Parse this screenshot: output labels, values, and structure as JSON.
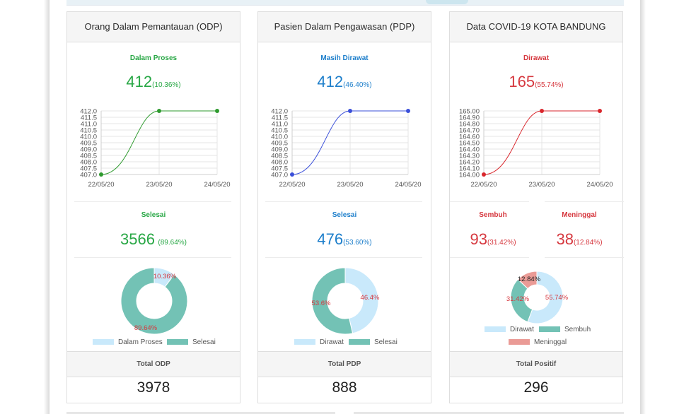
{
  "colors": {
    "green": "#28a745",
    "blue": "#1e7fcb",
    "red": "#d6383f",
    "donut_light": "#c9e9fb",
    "donut_teal": "#73c2b5",
    "donut_pink": "#ea9b96"
  },
  "cards": [
    {
      "title": "Orang Dalam Pemantauan (ODP)",
      "stat1": {
        "label": "Dalam Proses",
        "value": "412",
        "pct": "(10.36%)"
      },
      "stat2": {
        "label": "Selesai",
        "value": "3566",
        "pct": "(89.64%)"
      },
      "legend": [
        "Dalam Proses",
        "Selesai"
      ],
      "total_label": "Total ODP",
      "total_value": "3978"
    },
    {
      "title": "Pasien Dalam Pengawasan (PDP)",
      "stat1": {
        "label": "Masih Dirawat",
        "value": "412",
        "pct": "(46.40%)"
      },
      "stat2": {
        "label": "Selesai",
        "value": "476",
        "pct": "(53.60%)"
      },
      "legend": [
        "Dirawat",
        "Selesai"
      ],
      "total_label": "Total PDP",
      "total_value": "888"
    },
    {
      "title": "Data COVID-19 KOTA BANDUNG",
      "stat1": {
        "label": "Dirawat",
        "value": "165",
        "pct": "(55.74%)"
      },
      "stat2": {
        "label": "Sembuh",
        "value": "93",
        "pct": "(31.42%)"
      },
      "stat3": {
        "label": "Meninggal",
        "value": "38",
        "pct": "(12.84%)"
      },
      "legend": [
        "Dirawat",
        "Sembuh",
        "Meninggal"
      ],
      "total_label": "Total Positif",
      "total_value": "296"
    }
  ],
  "chart_data": [
    {
      "type": "line",
      "x": [
        "22/05/20",
        "23/05/20",
        "24/05/20"
      ],
      "values": [
        407,
        412,
        412
      ],
      "ylim": [
        407,
        412
      ],
      "yticks": [
        "412.0",
        "411.5",
        "411.0",
        "410.5",
        "410.0",
        "409.5",
        "409.0",
        "408.5",
        "408.0",
        "407.5",
        "407.0"
      ],
      "color": "#2e9a2e"
    },
    {
      "type": "line",
      "x": [
        "22/05/20",
        "23/05/20",
        "24/05/20"
      ],
      "values": [
        407,
        412,
        412
      ],
      "ylim": [
        407,
        412
      ],
      "yticks": [
        "412.0",
        "411.5",
        "411.0",
        "410.5",
        "410.0",
        "409.5",
        "409.0",
        "408.5",
        "408.0",
        "407.5",
        "407.0"
      ],
      "color": "#3a4fd9"
    },
    {
      "type": "line",
      "x": [
        "22/05/20",
        "23/05/20",
        "24/05/20"
      ],
      "values": [
        164,
        165,
        165
      ],
      "ylim": [
        164,
        165
      ],
      "yticks": [
        "165.00",
        "164.90",
        "164.80",
        "164.70",
        "164.60",
        "164.50",
        "164.40",
        "164.30",
        "164.20",
        "164.10",
        "164.00"
      ],
      "color": "#d9262c"
    },
    {
      "type": "pie",
      "categories": [
        "Dalam Proses",
        "Selesai"
      ],
      "values": [
        10.36,
        89.64
      ],
      "labels": [
        "10.36%",
        "89.64%"
      ]
    },
    {
      "type": "pie",
      "categories": [
        "Dirawat",
        "Selesai"
      ],
      "values": [
        46.4,
        53.6
      ],
      "labels": [
        "46.4%",
        "53.6%"
      ]
    },
    {
      "type": "pie",
      "categories": [
        "Dirawat",
        "Sembuh",
        "Meninggal"
      ],
      "values": [
        55.74,
        31.42,
        12.84
      ],
      "labels": [
        "55.74%",
        "31.42%",
        "12.84%"
      ]
    }
  ]
}
